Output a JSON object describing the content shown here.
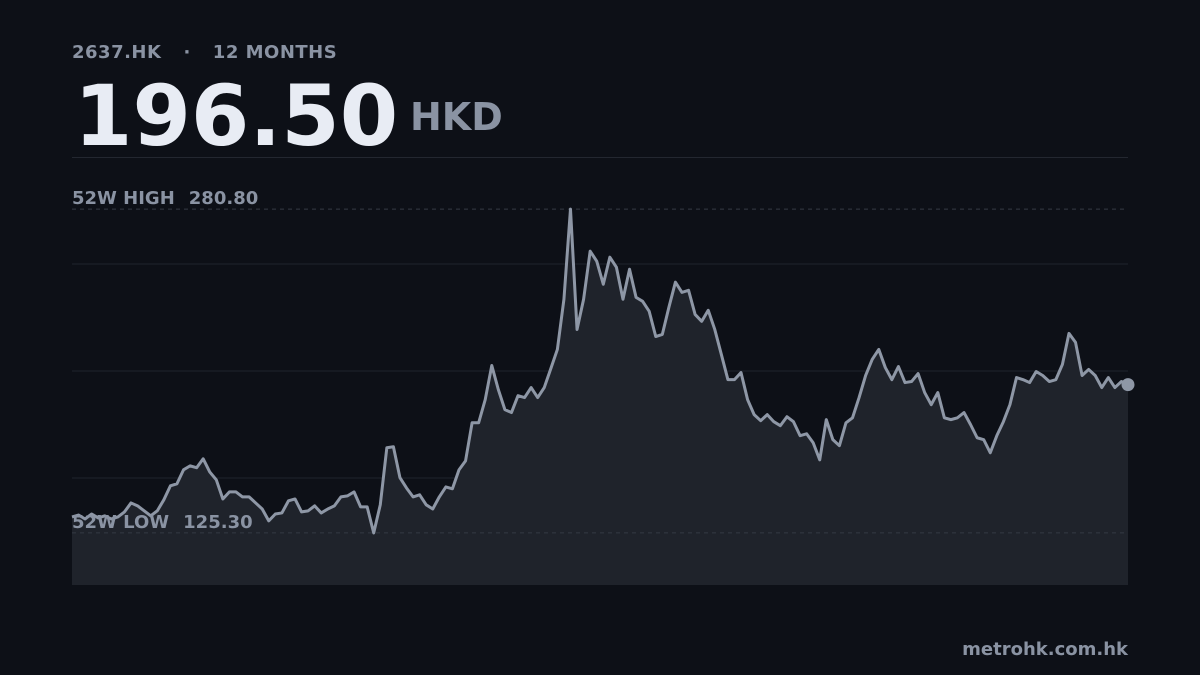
{
  "chart_data": {
    "type": "area",
    "ticker": "2637.HK",
    "separator": "·",
    "period": "12 MONTHS",
    "price": {
      "value": 196.5,
      "label": "196.50"
    },
    "currency": "HKD",
    "high": {
      "name": "52W HIGH",
      "value": 280.8,
      "label": "280.80"
    },
    "low": {
      "name": "52W LOW",
      "value": 125.3,
      "label": "125.30"
    },
    "source": "metrohk.com.hk",
    "color": "#8e97a6",
    "ylim": [
      100.3,
      305.8
    ],
    "grid": true,
    "values": [
      133.0,
      133.9,
      132.0,
      134.4,
      132.5,
      133.5,
      132.0,
      133.0,
      135.4,
      139.7,
      138.3,
      135.9,
      133.5,
      135.9,
      141.2,
      147.9,
      148.9,
      155.6,
      157.5,
      156.6,
      160.9,
      154.6,
      150.8,
      141.6,
      145.0,
      145.0,
      142.6,
      142.6,
      139.7,
      136.8,
      131.1,
      134.4,
      134.9,
      140.7,
      141.6,
      135.4,
      135.9,
      138.3,
      134.9,
      136.8,
      138.3,
      142.6,
      143.1,
      145.0,
      137.8,
      137.8,
      125.3,
      138.8,
      166.2,
      166.7,
      151.8,
      146.9,
      142.6,
      143.6,
      138.8,
      136.8,
      142.6,
      147.4,
      146.5,
      155.6,
      159.9,
      178.2,
      178.2,
      189.3,
      205.7,
      194.1,
      184.5,
      183.1,
      191.2,
      190.3,
      195.1,
      190.3,
      195.1,
      204.2,
      213.4,
      237.5,
      280.8,
      223.0,
      237.5,
      260.6,
      255.8,
      244.7,
      257.7,
      252.9,
      237.5,
      251.9,
      238.4,
      236.5,
      231.7,
      219.6,
      220.6,
      233.6,
      245.7,
      240.8,
      241.8,
      230.2,
      226.9,
      232.2,
      223.0,
      211.0,
      198.9,
      198.9,
      202.3,
      189.3,
      182.1,
      179.2,
      182.1,
      178.7,
      176.8,
      181.1,
      178.7,
      172.0,
      172.9,
      168.6,
      160.4,
      179.7,
      170.1,
      167.2,
      178.2,
      180.6,
      190.3,
      200.9,
      208.6,
      213.4,
      204.7,
      198.9,
      205.2,
      197.5,
      198.0,
      201.8,
      192.7,
      186.9,
      192.7,
      180.6,
      179.7,
      180.6,
      183.1,
      177.3,
      171.0,
      170.1,
      163.8,
      172.0,
      178.7,
      186.9,
      199.9,
      198.9,
      197.5,
      202.8,
      200.9,
      198.0,
      198.9,
      206.2,
      221.1,
      216.8,
      200.9,
      203.8,
      200.9,
      195.1,
      199.9,
      195.1,
      198.0,
      196.5
    ]
  }
}
